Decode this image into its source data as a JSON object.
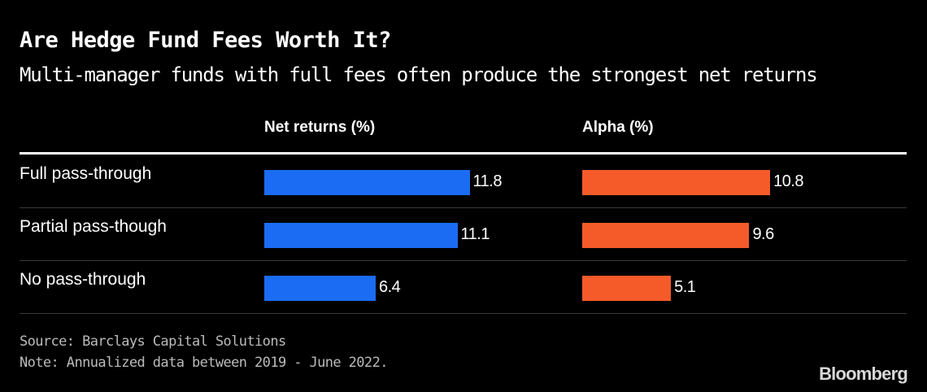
{
  "title": "Are Hedge Fund Fees Worth It?",
  "subtitle": "Multi-manager funds with full fees often produce the strongest net returns",
  "chart_data": {
    "type": "bar",
    "orientation": "horizontal",
    "categories": [
      "Full pass-through",
      "Partial pass-though",
      "No pass-through"
    ],
    "series": [
      {
        "name": "Net returns (%)",
        "values": [
          11.8,
          11.1,
          6.4
        ],
        "color": "#1b6cf2"
      },
      {
        "name": "Alpha (%)",
        "values": [
          10.8,
          9.6,
          5.1
        ],
        "color": "#f55a29"
      }
    ],
    "value_labels": [
      [
        "11.8",
        "11.1",
        "6.4"
      ],
      [
        "10.8",
        "9.6",
        "5.1"
      ]
    ],
    "grid": false,
    "legend": "column headers"
  },
  "footer": {
    "source": "Source: Barclays Capital Solutions",
    "note": "Note: Annualized data between 2019 - June 2022."
  },
  "brand": "Bloomberg"
}
